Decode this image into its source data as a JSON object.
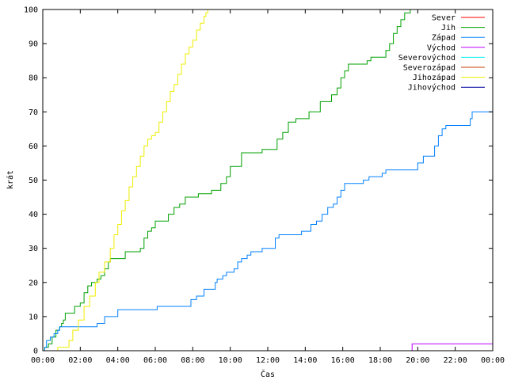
{
  "chart_data": {
    "type": "line",
    "title": "",
    "xlabel": "Čas",
    "ylabel": "krát",
    "xlim": [
      "00:00",
      "24:00"
    ],
    "ylim": [
      0,
      100
    ],
    "xticks": [
      "00:00",
      "02:00",
      "04:00",
      "06:00",
      "08:00",
      "10:00",
      "12:00",
      "14:00",
      "16:00",
      "18:00",
      "20:00",
      "22:00",
      "00:00"
    ],
    "yticks": [
      "0",
      "10",
      "20",
      "30",
      "40",
      "50",
      "60",
      "70",
      "80",
      "90",
      "100"
    ],
    "grid": false,
    "legend_position": "top-right",
    "series": [
      {
        "name": "Sever",
        "color": "#ff0000",
        "points": []
      },
      {
        "name": "Jih",
        "color": "#00a000",
        "points": [
          [
            0.0,
            0
          ],
          [
            0.1,
            1
          ],
          [
            0.3,
            2
          ],
          [
            0.5,
            4
          ],
          [
            0.7,
            6
          ],
          [
            0.9,
            7
          ],
          [
            1.0,
            8
          ],
          [
            1.1,
            9
          ],
          [
            1.2,
            11
          ],
          [
            1.6,
            11
          ],
          [
            1.7,
            13
          ],
          [
            2.0,
            14
          ],
          [
            2.2,
            17
          ],
          [
            2.4,
            19
          ],
          [
            2.6,
            20
          ],
          [
            2.9,
            21
          ],
          [
            3.1,
            22
          ],
          [
            3.3,
            24
          ],
          [
            3.5,
            26
          ],
          [
            3.6,
            27
          ],
          [
            4.0,
            27
          ],
          [
            4.2,
            27
          ],
          [
            4.4,
            29
          ],
          [
            5.0,
            29
          ],
          [
            5.2,
            30
          ],
          [
            5.4,
            33
          ],
          [
            5.6,
            35
          ],
          [
            5.8,
            36
          ],
          [
            6.0,
            38
          ],
          [
            6.5,
            38
          ],
          [
            6.7,
            40
          ],
          [
            7.0,
            42
          ],
          [
            7.3,
            43
          ],
          [
            7.6,
            45
          ],
          [
            8.0,
            45
          ],
          [
            8.3,
            46
          ],
          [
            8.8,
            46
          ],
          [
            9.0,
            47
          ],
          [
            9.3,
            47
          ],
          [
            9.5,
            49
          ],
          [
            9.8,
            51
          ],
          [
            10.0,
            54
          ],
          [
            10.5,
            54
          ],
          [
            10.6,
            58
          ],
          [
            11.5,
            58
          ],
          [
            11.7,
            59
          ],
          [
            12.3,
            59
          ],
          [
            12.5,
            62
          ],
          [
            12.8,
            64
          ],
          [
            13.1,
            67
          ],
          [
            13.5,
            68
          ],
          [
            14.0,
            68
          ],
          [
            14.2,
            70
          ],
          [
            14.6,
            70
          ],
          [
            14.8,
            73
          ],
          [
            15.2,
            73
          ],
          [
            15.4,
            75
          ],
          [
            15.7,
            77
          ],
          [
            15.9,
            80
          ],
          [
            16.1,
            82
          ],
          [
            16.3,
            84
          ],
          [
            17.0,
            84
          ],
          [
            17.3,
            85
          ],
          [
            17.5,
            86
          ],
          [
            18.0,
            86
          ],
          [
            18.3,
            88
          ],
          [
            18.5,
            90
          ],
          [
            18.7,
            93
          ],
          [
            18.9,
            95
          ],
          [
            19.1,
            97
          ],
          [
            19.3,
            99
          ],
          [
            19.6,
            100
          ],
          [
            19.9,
            100
          ]
        ]
      },
      {
        "name": "Západ",
        "color": "#0080ff",
        "points": [
          [
            0.0,
            0
          ],
          [
            0.1,
            1
          ],
          [
            0.2,
            3
          ],
          [
            0.4,
            4
          ],
          [
            0.6,
            5
          ],
          [
            0.8,
            6
          ],
          [
            0.9,
            7
          ],
          [
            2.8,
            7
          ],
          [
            2.9,
            8
          ],
          [
            3.2,
            8
          ],
          [
            3.3,
            10
          ],
          [
            3.8,
            10
          ],
          [
            4.0,
            12
          ],
          [
            6.0,
            12
          ],
          [
            6.1,
            13
          ],
          [
            7.8,
            13
          ],
          [
            7.9,
            15
          ],
          [
            8.2,
            16
          ],
          [
            8.6,
            18
          ],
          [
            9.0,
            18
          ],
          [
            9.2,
            20
          ],
          [
            9.3,
            21
          ],
          [
            9.6,
            22
          ],
          [
            9.8,
            23
          ],
          [
            10.2,
            24
          ],
          [
            10.4,
            26
          ],
          [
            10.6,
            27
          ],
          [
            10.9,
            28
          ],
          [
            11.1,
            29
          ],
          [
            11.5,
            29
          ],
          [
            11.7,
            30
          ],
          [
            12.1,
            30
          ],
          [
            12.4,
            33
          ],
          [
            12.6,
            34
          ],
          [
            13.7,
            34
          ],
          [
            13.8,
            35
          ],
          [
            14.2,
            35
          ],
          [
            14.3,
            37
          ],
          [
            14.6,
            38
          ],
          [
            14.9,
            40
          ],
          [
            15.2,
            42
          ],
          [
            15.5,
            43
          ],
          [
            15.7,
            45
          ],
          [
            15.9,
            47
          ],
          [
            16.1,
            49
          ],
          [
            16.9,
            49
          ],
          [
            17.1,
            50
          ],
          [
            17.4,
            51
          ],
          [
            18.0,
            51
          ],
          [
            18.1,
            52
          ],
          [
            18.3,
            53
          ],
          [
            19.8,
            53
          ],
          [
            20.0,
            55
          ],
          [
            20.3,
            57
          ],
          [
            20.7,
            57
          ],
          [
            20.9,
            60
          ],
          [
            21.1,
            63
          ],
          [
            21.3,
            65
          ],
          [
            21.5,
            66
          ],
          [
            22.0,
            66
          ],
          [
            22.2,
            66
          ],
          [
            22.7,
            66
          ],
          [
            22.8,
            68
          ],
          [
            22.9,
            70
          ],
          [
            24.0,
            70
          ]
        ]
      },
      {
        "name": "Východ",
        "color": "#c000ff",
        "points": [
          [
            19.6,
            0
          ],
          [
            19.7,
            2
          ],
          [
            24.0,
            2
          ]
        ]
      },
      {
        "name": "Severovýchod",
        "color": "#00eeee",
        "points": []
      },
      {
        "name": "Severozápad",
        "color": "#c04000",
        "points": []
      },
      {
        "name": "Jihozápad",
        "color": "#eeee00",
        "points": [
          [
            0.0,
            0
          ],
          [
            0.6,
            0
          ],
          [
            0.8,
            1
          ],
          [
            1.2,
            1
          ],
          [
            1.4,
            3
          ],
          [
            1.6,
            6
          ],
          [
            1.9,
            9
          ],
          [
            2.2,
            13
          ],
          [
            2.5,
            16
          ],
          [
            2.8,
            20
          ],
          [
            3.0,
            23
          ],
          [
            3.3,
            26
          ],
          [
            3.6,
            30
          ],
          [
            3.8,
            34
          ],
          [
            4.0,
            37
          ],
          [
            4.2,
            41
          ],
          [
            4.4,
            44
          ],
          [
            4.6,
            48
          ],
          [
            4.8,
            51
          ],
          [
            5.0,
            54
          ],
          [
            5.2,
            57
          ],
          [
            5.4,
            60
          ],
          [
            5.6,
            62
          ],
          [
            5.8,
            63
          ],
          [
            6.0,
            64
          ],
          [
            6.2,
            67
          ],
          [
            6.4,
            70
          ],
          [
            6.6,
            73
          ],
          [
            6.8,
            76
          ],
          [
            7.0,
            78
          ],
          [
            7.2,
            81
          ],
          [
            7.4,
            84
          ],
          [
            7.6,
            87
          ],
          [
            7.8,
            89
          ],
          [
            8.0,
            91
          ],
          [
            8.2,
            94
          ],
          [
            8.4,
            96
          ],
          [
            8.6,
            98
          ],
          [
            8.7,
            99
          ],
          [
            8.8,
            100
          ]
        ]
      },
      {
        "name": "Jihovýchod",
        "color": "#0000a0",
        "points": []
      }
    ]
  }
}
